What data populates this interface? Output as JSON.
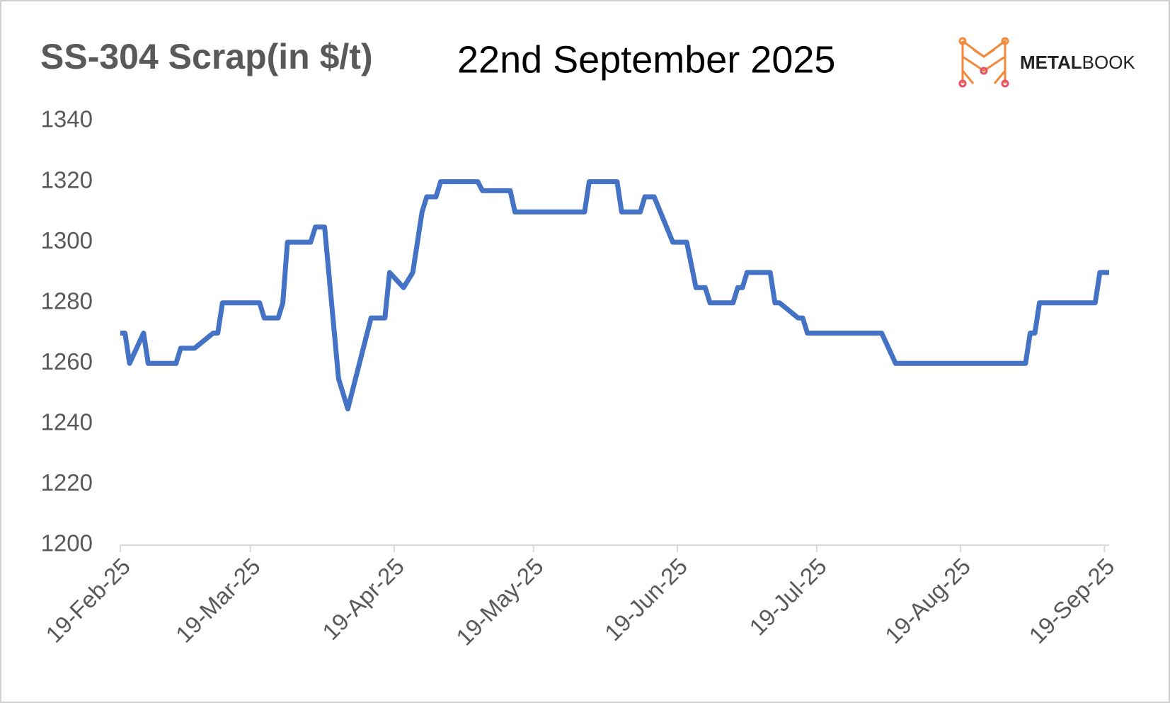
{
  "chart_data": {
    "type": "line",
    "title": "SS-304 Scrap(in $/t)",
    "subtitle": "22nd September 2025",
    "logo_text": [
      "METAL",
      "BOOK"
    ],
    "x": [
      "2025-02-19",
      "2025-02-20",
      "2025-02-21",
      "2025-02-24",
      "2025-02-25",
      "2025-03-03",
      "2025-03-04",
      "2025-03-07",
      "2025-03-11",
      "2025-03-12",
      "2025-03-13",
      "2025-03-21",
      "2025-03-22",
      "2025-03-25",
      "2025-03-26",
      "2025-03-27",
      "2025-04-01",
      "2025-04-02",
      "2025-04-04",
      "2025-04-07",
      "2025-04-09",
      "2025-04-14",
      "2025-04-17",
      "2025-04-18",
      "2025-04-21",
      "2025-04-23",
      "2025-04-25",
      "2025-04-26",
      "2025-04-28",
      "2025-04-29",
      "2025-05-07",
      "2025-05-08",
      "2025-05-14",
      "2025-05-15",
      "2025-05-30",
      "2025-05-31",
      "2025-06-06",
      "2025-06-07",
      "2025-06-11",
      "2025-06-12",
      "2025-06-14",
      "2025-06-18",
      "2025-06-21",
      "2025-06-23",
      "2025-06-25",
      "2025-06-26",
      "2025-07-01",
      "2025-07-02",
      "2025-07-03",
      "2025-07-04",
      "2025-07-09",
      "2025-07-10",
      "2025-07-11",
      "2025-07-15",
      "2025-07-16",
      "2025-07-17",
      "2025-08-02",
      "2025-08-05",
      "2025-09-02",
      "2025-09-03",
      "2025-09-04",
      "2025-09-05",
      "2025-09-17",
      "2025-09-18",
      "2025-09-20"
    ],
    "series": [
      {
        "name": "SS-304 Scrap",
        "color": "#4472c4",
        "values": [
          1270,
          1270,
          1260,
          1270,
          1260,
          1260,
          1265,
          1265,
          1270,
          1270,
          1280,
          1280,
          1275,
          1275,
          1280,
          1300,
          1300,
          1305,
          1305,
          1255,
          1245,
          1275,
          1275,
          1290,
          1285,
          1290,
          1310,
          1315,
          1315,
          1320,
          1320,
          1317,
          1317,
          1310,
          1310,
          1320,
          1320,
          1310,
          1310,
          1315,
          1315,
          1300,
          1300,
          1285,
          1285,
          1280,
          1280,
          1285,
          1285,
          1290,
          1290,
          1280,
          1280,
          1275,
          1275,
          1270,
          1270,
          1260,
          1260,
          1270,
          1270,
          1280,
          1280,
          1290,
          1290
        ]
      }
    ],
    "xlim": [
      "2025-02-19",
      "2025-09-20"
    ],
    "xticks": [
      {
        "value": "2025-02-19",
        "label": "19-Feb-25"
      },
      {
        "value": "2025-03-19",
        "label": "19-Mar-25"
      },
      {
        "value": "2025-04-19",
        "label": "19-Apr-25"
      },
      {
        "value": "2025-05-19",
        "label": "19-May-25"
      },
      {
        "value": "2025-06-19",
        "label": "19-Jun-25"
      },
      {
        "value": "2025-07-19",
        "label": "19-Jul-25"
      },
      {
        "value": "2025-08-19",
        "label": "19-Aug-25"
      },
      {
        "value": "2025-09-19",
        "label": "19-Sep-25"
      }
    ],
    "ylim": [
      1200,
      1340
    ],
    "yticks": [
      1200,
      1220,
      1240,
      1260,
      1280,
      1300,
      1320,
      1340
    ],
    "grid": false
  }
}
